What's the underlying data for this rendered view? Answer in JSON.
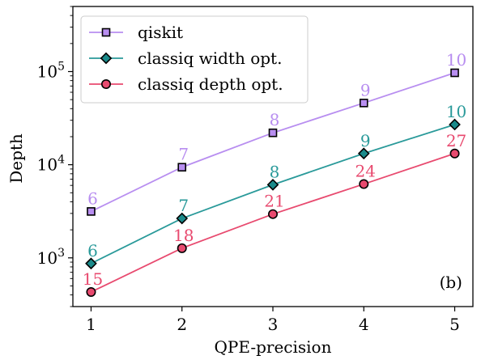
{
  "chart_data": {
    "type": "line",
    "xlabel": "QPE-precision",
    "ylabel": "Depth",
    "x": [
      1,
      2,
      3,
      4,
      5
    ],
    "xlim": [
      0.8,
      5.2
    ],
    "y_scale": "log",
    "ylim": [
      300,
      500000
    ],
    "x_ticks": [
      {
        "value": 1,
        "label": "1"
      },
      {
        "value": 2,
        "label": "2"
      },
      {
        "value": 3,
        "label": "3"
      },
      {
        "value": 4,
        "label": "4"
      },
      {
        "value": 5,
        "label": "5"
      }
    ],
    "y_ticks": [
      {
        "value": 1000,
        "base": "10",
        "exp": "3"
      },
      {
        "value": 10000,
        "base": "10",
        "exp": "4"
      },
      {
        "value": 100000,
        "base": "10",
        "exp": "5"
      }
    ],
    "legend_position": "top-left",
    "annotation": "(b)",
    "series": [
      {
        "name": "qiskit",
        "color": "#b88ef0",
        "marker": "square",
        "marker_fill": "#b88ef0",
        "values": [
          3150,
          9400,
          22000,
          46000,
          97000
        ],
        "point_labels": [
          "6",
          "7",
          "8",
          "9",
          "10"
        ]
      },
      {
        "name": "classiq width opt.",
        "color": "#2a9a9a",
        "marker": "diamond",
        "marker_fill": "#1a8a8a",
        "values": [
          870,
          2650,
          6100,
          13200,
          27000
        ],
        "point_labels": [
          "6",
          "7",
          "8",
          "9",
          "10"
        ]
      },
      {
        "name": "classiq depth opt.",
        "color": "#e84a6f",
        "marker": "circle",
        "marker_fill": "#e84a6f",
        "values": [
          430,
          1270,
          2950,
          6200,
          13200
        ],
        "point_labels": [
          "15",
          "18",
          "21",
          "24",
          "27"
        ]
      }
    ]
  }
}
